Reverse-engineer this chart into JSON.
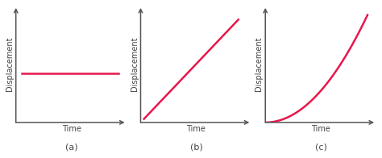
{
  "background_color": "#ffffff",
  "line_color": "#e8174b",
  "line_width": 1.8,
  "axis_color": "#555555",
  "label_color": "#444444",
  "ylabel": "Displacement",
  "xlabel": "Time",
  "label_a": "(a)",
  "label_b": "(b)",
  "label_c": "(c)",
  "font_size_axis_label": 7,
  "font_size_sub_label": 8,
  "font_size_ylabel": 7
}
